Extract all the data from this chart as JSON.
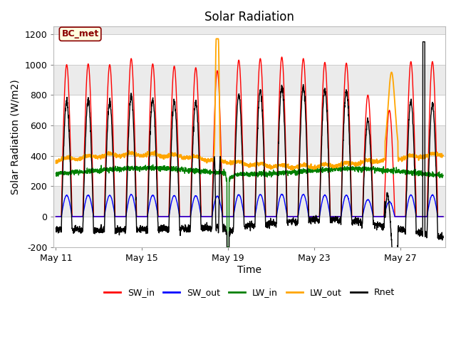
{
  "title": "Solar Radiation",
  "xlabel": "Time",
  "ylabel": "Solar Radiation (W/m2)",
  "ylim": [
    -200,
    1250
  ],
  "yticks": [
    -200,
    0,
    200,
    400,
    600,
    800,
    1000,
    1200
  ],
  "xtick_labels": [
    "May 11",
    "May 15",
    "May 19",
    "May 23",
    "May 27"
  ],
  "xtick_days": [
    0,
    4,
    8,
    12,
    16
  ],
  "legend_labels": [
    "SW_in",
    "SW_out",
    "LW_in",
    "LW_out",
    "Rnet"
  ],
  "line_colors": [
    "red",
    "blue",
    "green",
    "orange",
    "black"
  ],
  "annotation_text": "BC_met",
  "fig_bg": "#ffffff",
  "ax_bg": "#ffffff",
  "band_colors": [
    "#f0f0f0",
    "#e0e0e0"
  ],
  "title_fontsize": 12,
  "axis_label_fontsize": 10,
  "tick_fontsize": 9,
  "n_days": 18,
  "pts_per_day": 144,
  "seed": 42,
  "peak_sw": [
    1000,
    1005,
    1000,
    1040,
    1005,
    990,
    980,
    960,
    1030,
    1040,
    1050,
    1040,
    1015,
    1010,
    800,
    700,
    1020,
    1020
  ],
  "lw_in_spike_day": 8.02,
  "lw_out_spike_day": 7.5,
  "rnet_spike_day": 17.1
}
